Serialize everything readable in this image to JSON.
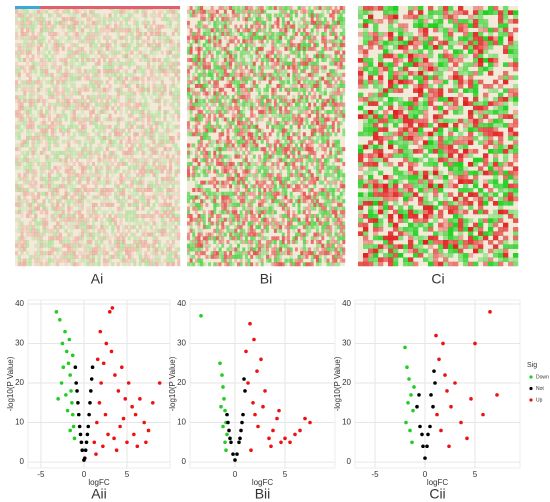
{
  "panels": [
    "Ai",
    "Bi",
    "Ci"
  ],
  "chart_data": [
    {
      "type": "scatter",
      "panel": "Aii",
      "xlabel": "logFC",
      "ylabel": "-log10(P Value)",
      "xlim": [
        -6.5,
        10
      ],
      "ylim": [
        -1.5,
        41
      ],
      "xticks": [
        -5,
        0,
        5
      ],
      "yticks": [
        0,
        10,
        20,
        30,
        40
      ],
      "grid": true,
      "series": [
        {
          "color": "#22cc22",
          "x": [
            -3.2,
            -2.8,
            -2.5,
            -2.2,
            -2.0,
            -1.8,
            -1.6,
            -1.5,
            -1.4,
            -1.3,
            -1.2,
            -1.1,
            -2.6,
            -2.1,
            -1.7,
            -1.9,
            -2.4,
            -1.3,
            -1.6,
            -3.0
          ],
          "values": [
            38,
            36,
            30,
            33,
            28,
            25,
            22,
            18,
            15,
            12,
            9,
            6,
            20,
            17,
            31,
            13,
            24,
            27,
            8,
            16
          ]
        },
        {
          "color": "#000000",
          "x": [
            -1.0,
            -0.8,
            -0.6,
            -0.4,
            -0.2,
            0,
            0.2,
            0.4,
            0.6,
            0.8,
            1.0,
            -0.9,
            0.9,
            -0.5,
            0.5,
            -0.7,
            0.7,
            0.1,
            -0.3,
            0.3
          ],
          "values": [
            24,
            18,
            12,
            7,
            3,
            0.5,
            3,
            7,
            12,
            18,
            24,
            20,
            21,
            9,
            9,
            15,
            15,
            1,
            5,
            5
          ]
        },
        {
          "color": "#ee1111",
          "x": [
            1.2,
            1.5,
            1.8,
            2.0,
            2.3,
            2.6,
            3.0,
            3.3,
            3.6,
            4.0,
            4.4,
            4.8,
            5.2,
            5.6,
            6.0,
            6.5,
            7.0,
            7.5,
            8.0,
            8.8,
            1.4,
            2.2,
            2.8,
            3.5,
            4.2,
            5.0,
            6.2,
            1.9,
            2.5,
            3.2,
            4.6,
            5.8,
            7.2,
            1.6,
            3.8
          ],
          "values": [
            5,
            10,
            15,
            20,
            25,
            30,
            38,
            39,
            22,
            18,
            24,
            16,
            20,
            14,
            12,
            16,
            10,
            8,
            15,
            20,
            2,
            4,
            7,
            6,
            9,
            5,
            4,
            33,
            12,
            28,
            11,
            7,
            5,
            26,
            3
          ]
        }
      ]
    },
    {
      "type": "scatter",
      "panel": "Bii",
      "xlabel": "logFC",
      "ylabel": "-log10(P Value)",
      "xlim": [
        -4.5,
        10
      ],
      "ylim": [
        -1.5,
        41
      ],
      "xticks": [
        0,
        5
      ],
      "yticks": [
        0,
        10,
        20,
        30,
        40
      ],
      "grid": true,
      "series": [
        {
          "color": "#22cc22",
          "x": [
            -3.4,
            -1.5,
            -1.3,
            -1.2,
            -1.1,
            -1.0,
            -0.9,
            -0.8,
            -1.4,
            -1.2,
            -1.0,
            -0.9
          ],
          "values": [
            37,
            25,
            22,
            19,
            16,
            13,
            10,
            7,
            14,
            9,
            5,
            3
          ]
        },
        {
          "color": "#000000",
          "x": [
            -0.8,
            -0.6,
            -0.4,
            -0.2,
            0,
            0.2,
            0.4,
            0.6,
            0.8,
            1.0,
            -0.7,
            0.7,
            0.9,
            -0.5,
            0.5
          ],
          "values": [
            12,
            8,
            5,
            2,
            0.5,
            2,
            5,
            8,
            12,
            18,
            10,
            10,
            21,
            6,
            6
          ]
        },
        {
          "color": "#ee1111",
          "x": [
            1.1,
            1.3,
            1.5,
            1.8,
            2.0,
            2.3,
            2.6,
            3.0,
            3.4,
            3.8,
            4.2,
            4.6,
            5.0,
            5.5,
            6.0,
            6.5,
            7.0,
            7.5,
            1.6,
            2.2,
            2.8,
            3.6,
            4.4,
            1.9
          ],
          "values": [
            28,
            20,
            35,
            15,
            12,
            9,
            26,
            18,
            6,
            8,
            11,
            5,
            6,
            5,
            7,
            8,
            11,
            10,
            3,
            23,
            14,
            4,
            13,
            31
          ]
        }
      ]
    },
    {
      "type": "scatter",
      "panel": "Cii",
      "xlabel": "logFC",
      "ylabel": "-log10(P Value)",
      "xlim": [
        -7,
        9.5
      ],
      "ylim": [
        -1.5,
        41
      ],
      "xticks": [
        -5,
        0,
        5
      ],
      "yticks": [
        0,
        10,
        20,
        30,
        40
      ],
      "grid": true,
      "legend": {
        "title": "Sig"
      },
      "series": [
        {
          "name": "Down",
          "color": "#22cc22",
          "x": [
            -2.0,
            -1.8,
            -1.6,
            -1.4,
            -1.2,
            -1.9,
            -1.5,
            -1.3,
            -1.7,
            -1.1
          ],
          "values": [
            29,
            24,
            21,
            17,
            13,
            10,
            8,
            5,
            15,
            19
          ]
        },
        {
          "name": "Not",
          "color": "#000000",
          "x": [
            -0.8,
            -0.5,
            -0.2,
            0,
            0.2,
            0.5,
            0.8,
            1.0,
            -0.6,
            0.6,
            0.9,
            -0.3,
            0.3
          ],
          "values": [
            14,
            9,
            4,
            1,
            4,
            9,
            14,
            20,
            17,
            17,
            23,
            7,
            7
          ]
        },
        {
          "name": "Up",
          "color": "#ee1111",
          "x": [
            1.1,
            1.4,
            1.8,
            2.2,
            2.6,
            3.0,
            3.6,
            4.2,
            5.0,
            5.8,
            6.5,
            7.2,
            1.6,
            2.0,
            2.4,
            4.6,
            1.2
          ],
          "values": [
            32,
            26,
            30,
            18,
            14,
            20,
            10,
            6,
            30,
            12,
            38,
            17,
            8,
            22,
            4,
            16,
            12
          ]
        }
      ]
    }
  ]
}
